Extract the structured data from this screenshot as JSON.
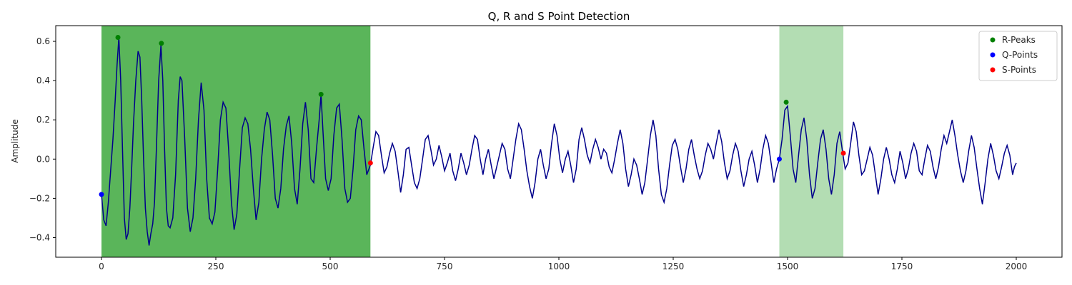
{
  "chart_data": {
    "type": "line",
    "title": "Q, R and S Point Detection",
    "xlabel": "",
    "ylabel": "Amplitude",
    "xlim": [
      -100,
      2100
    ],
    "ylim": [
      -0.5,
      0.68
    ],
    "xticks": [
      0,
      250,
      500,
      750,
      1000,
      1250,
      1500,
      1750,
      2000
    ],
    "yticks": [
      -0.4,
      -0.2,
      0.0,
      0.2,
      0.4,
      0.6
    ],
    "xtick_labels": [
      "0",
      "250",
      "500",
      "750",
      "1000",
      "1250",
      "1500",
      "1750",
      "2000"
    ],
    "ytick_labels": [
      "−0.4",
      "−0.2",
      "0.0",
      "0.2",
      "0.4",
      "0.6"
    ],
    "grid": false,
    "legend_position": "top-right",
    "signal": {
      "color": "#00008b",
      "points": [
        [
          0,
          -0.18
        ],
        [
          5,
          -0.31
        ],
        [
          10,
          -0.34
        ],
        [
          15,
          -0.22
        ],
        [
          20,
          -0.06
        ],
        [
          25,
          0.1
        ],
        [
          30,
          0.3
        ],
        [
          34,
          0.48
        ],
        [
          38,
          0.62
        ],
        [
          42,
          0.4
        ],
        [
          46,
          0.05
        ],
        [
          50,
          -0.3
        ],
        [
          54,
          -0.41
        ],
        [
          58,
          -0.38
        ],
        [
          62,
          -0.25
        ],
        [
          66,
          -0.05
        ],
        [
          70,
          0.18
        ],
        [
          75,
          0.4
        ],
        [
          80,
          0.55
        ],
        [
          84,
          0.52
        ],
        [
          88,
          0.3
        ],
        [
          92,
          0.0
        ],
        [
          96,
          -0.25
        ],
        [
          100,
          -0.37
        ],
        [
          104,
          -0.44
        ],
        [
          108,
          -0.38
        ],
        [
          112,
          -0.33
        ],
        [
          116,
          -0.22
        ],
        [
          120,
          0.05
        ],
        [
          125,
          0.4
        ],
        [
          130,
          0.58
        ],
        [
          134,
          0.4
        ],
        [
          138,
          0.05
        ],
        [
          142,
          -0.25
        ],
        [
          146,
          -0.34
        ],
        [
          150,
          -0.35
        ],
        [
          156,
          -0.3
        ],
        [
          162,
          -0.08
        ],
        [
          168,
          0.3
        ],
        [
          172,
          0.42
        ],
        [
          176,
          0.4
        ],
        [
          182,
          0.1
        ],
        [
          188,
          -0.25
        ],
        [
          194,
          -0.37
        ],
        [
          200,
          -0.3
        ],
        [
          206,
          -0.1
        ],
        [
          212,
          0.2
        ],
        [
          218,
          0.39
        ],
        [
          224,
          0.25
        ],
        [
          230,
          -0.1
        ],
        [
          236,
          -0.3
        ],
        [
          242,
          -0.33
        ],
        [
          248,
          -0.27
        ],
        [
          254,
          -0.05
        ],
        [
          260,
          0.2
        ],
        [
          266,
          0.29
        ],
        [
          272,
          0.26
        ],
        [
          278,
          0.05
        ],
        [
          284,
          -0.22
        ],
        [
          290,
          -0.36
        ],
        [
          296,
          -0.28
        ],
        [
          302,
          -0.05
        ],
        [
          308,
          0.16
        ],
        [
          314,
          0.21
        ],
        [
          320,
          0.18
        ],
        [
          326,
          0.05
        ],
        [
          332,
          -0.15
        ],
        [
          338,
          -0.31
        ],
        [
          344,
          -0.22
        ],
        [
          350,
          0.0
        ],
        [
          356,
          0.15
        ],
        [
          362,
          0.24
        ],
        [
          368,
          0.2
        ],
        [
          374,
          0.02
        ],
        [
          380,
          -0.2
        ],
        [
          386,
          -0.25
        ],
        [
          392,
          -0.15
        ],
        [
          398,
          0.05
        ],
        [
          404,
          0.17
        ],
        [
          410,
          0.22
        ],
        [
          416,
          0.08
        ],
        [
          422,
          -0.15
        ],
        [
          428,
          -0.23
        ],
        [
          434,
          -0.05
        ],
        [
          440,
          0.18
        ],
        [
          446,
          0.29
        ],
        [
          452,
          0.15
        ],
        [
          458,
          -0.1
        ],
        [
          464,
          -0.12
        ],
        [
          470,
          0.05
        ],
        [
          476,
          0.2
        ],
        [
          480,
          0.33
        ],
        [
          484,
          0.15
        ],
        [
          490,
          -0.1
        ],
        [
          496,
          -0.16
        ],
        [
          502,
          -0.1
        ],
        [
          508,
          0.12
        ],
        [
          514,
          0.26
        ],
        [
          520,
          0.28
        ],
        [
          526,
          0.1
        ],
        [
          532,
          -0.15
        ],
        [
          538,
          -0.22
        ],
        [
          544,
          -0.2
        ],
        [
          550,
          -0.05
        ],
        [
          556,
          0.15
        ],
        [
          562,
          0.22
        ],
        [
          568,
          0.2
        ],
        [
          574,
          0.05
        ],
        [
          580,
          -0.08
        ],
        [
          588,
          -0.03
        ],
        [
          594,
          0.06
        ],
        [
          600,
          0.14
        ],
        [
          606,
          0.12
        ],
        [
          612,
          0.02
        ],
        [
          618,
          -0.07
        ],
        [
          624,
          -0.04
        ],
        [
          630,
          0.03
        ],
        [
          636,
          0.08
        ],
        [
          642,
          0.04
        ],
        [
          648,
          -0.06
        ],
        [
          654,
          -0.17
        ],
        [
          660,
          -0.08
        ],
        [
          666,
          0.05
        ],
        [
          672,
          0.06
        ],
        [
          678,
          -0.03
        ],
        [
          684,
          -0.12
        ],
        [
          690,
          -0.15
        ],
        [
          696,
          -0.1
        ],
        [
          702,
          0.0
        ],
        [
          708,
          0.1
        ],
        [
          714,
          0.12
        ],
        [
          720,
          0.05
        ],
        [
          726,
          -0.03
        ],
        [
          732,
          0.0
        ],
        [
          738,
          0.07
        ],
        [
          744,
          0.01
        ],
        [
          750,
          -0.06
        ],
        [
          756,
          -0.02
        ],
        [
          762,
          0.03
        ],
        [
          768,
          -0.06
        ],
        [
          774,
          -0.11
        ],
        [
          780,
          -0.05
        ],
        [
          786,
          0.03
        ],
        [
          792,
          -0.02
        ],
        [
          798,
          -0.08
        ],
        [
          804,
          -0.03
        ],
        [
          810,
          0.05
        ],
        [
          816,
          0.12
        ],
        [
          822,
          0.1
        ],
        [
          828,
          0.0
        ],
        [
          834,
          -0.08
        ],
        [
          840,
          0.0
        ],
        [
          846,
          0.05
        ],
        [
          852,
          -0.03
        ],
        [
          858,
          -0.1
        ],
        [
          864,
          -0.04
        ],
        [
          870,
          0.02
        ],
        [
          876,
          0.08
        ],
        [
          882,
          0.05
        ],
        [
          888,
          -0.05
        ],
        [
          894,
          -0.1
        ],
        [
          900,
          0.0
        ],
        [
          906,
          0.1
        ],
        [
          912,
          0.18
        ],
        [
          918,
          0.15
        ],
        [
          924,
          0.05
        ],
        [
          930,
          -0.06
        ],
        [
          936,
          -0.14
        ],
        [
          942,
          -0.2
        ],
        [
          948,
          -0.12
        ],
        [
          954,
          0.0
        ],
        [
          960,
          0.05
        ],
        [
          966,
          -0.03
        ],
        [
          972,
          -0.1
        ],
        [
          978,
          -0.05
        ],
        [
          984,
          0.08
        ],
        [
          990,
          0.18
        ],
        [
          996,
          0.12
        ],
        [
          1002,
          0.0
        ],
        [
          1008,
          -0.07
        ],
        [
          1014,
          0.0
        ],
        [
          1020,
          0.04
        ],
        [
          1026,
          -0.03
        ],
        [
          1032,
          -0.12
        ],
        [
          1038,
          -0.05
        ],
        [
          1044,
          0.1
        ],
        [
          1050,
          0.16
        ],
        [
          1056,
          0.1
        ],
        [
          1062,
          0.02
        ],
        [
          1068,
          -0.02
        ],
        [
          1074,
          0.05
        ],
        [
          1080,
          0.1
        ],
        [
          1086,
          0.06
        ],
        [
          1092,
          0.0
        ],
        [
          1098,
          0.05
        ],
        [
          1104,
          0.03
        ],
        [
          1110,
          -0.04
        ],
        [
          1116,
          -0.07
        ],
        [
          1122,
          0.0
        ],
        [
          1128,
          0.08
        ],
        [
          1134,
          0.15
        ],
        [
          1140,
          0.08
        ],
        [
          1146,
          -0.05
        ],
        [
          1152,
          -0.14
        ],
        [
          1158,
          -0.08
        ],
        [
          1164,
          0.0
        ],
        [
          1170,
          -0.03
        ],
        [
          1176,
          -0.1
        ],
        [
          1182,
          -0.18
        ],
        [
          1188,
          -0.12
        ],
        [
          1194,
          0.0
        ],
        [
          1200,
          0.12
        ],
        [
          1206,
          0.2
        ],
        [
          1212,
          0.12
        ],
        [
          1218,
          -0.05
        ],
        [
          1224,
          -0.18
        ],
        [
          1230,
          -0.22
        ],
        [
          1236,
          -0.15
        ],
        [
          1242,
          -0.03
        ],
        [
          1248,
          0.07
        ],
        [
          1254,
          0.1
        ],
        [
          1260,
          0.05
        ],
        [
          1266,
          -0.04
        ],
        [
          1272,
          -0.12
        ],
        [
          1278,
          -0.05
        ],
        [
          1284,
          0.05
        ],
        [
          1290,
          0.1
        ],
        [
          1296,
          0.02
        ],
        [
          1302,
          -0.05
        ],
        [
          1308,
          -0.1
        ],
        [
          1314,
          -0.06
        ],
        [
          1320,
          0.02
        ],
        [
          1326,
          0.08
        ],
        [
          1332,
          0.05
        ],
        [
          1338,
          0.0
        ],
        [
          1344,
          0.08
        ],
        [
          1350,
          0.15
        ],
        [
          1356,
          0.09
        ],
        [
          1362,
          -0.02
        ],
        [
          1368,
          -0.1
        ],
        [
          1374,
          -0.06
        ],
        [
          1380,
          0.02
        ],
        [
          1386,
          0.08
        ],
        [
          1392,
          0.04
        ],
        [
          1398,
          -0.06
        ],
        [
          1404,
          -0.14
        ],
        [
          1410,
          -0.08
        ],
        [
          1416,
          0.0
        ],
        [
          1422,
          0.04
        ],
        [
          1428,
          -0.03
        ],
        [
          1434,
          -0.12
        ],
        [
          1440,
          -0.05
        ],
        [
          1446,
          0.05
        ],
        [
          1452,
          0.12
        ],
        [
          1458,
          0.08
        ],
        [
          1464,
          -0.02
        ],
        [
          1470,
          -0.12
        ],
        [
          1476,
          -0.05
        ],
        [
          1482,
          0.0
        ],
        [
          1488,
          0.1
        ],
        [
          1494,
          0.25
        ],
        [
          1500,
          0.27
        ],
        [
          1506,
          0.12
        ],
        [
          1512,
          -0.05
        ],
        [
          1518,
          -0.12
        ],
        [
          1524,
          0.02
        ],
        [
          1530,
          0.15
        ],
        [
          1536,
          0.21
        ],
        [
          1542,
          0.1
        ],
        [
          1548,
          -0.08
        ],
        [
          1554,
          -0.2
        ],
        [
          1560,
          -0.15
        ],
        [
          1566,
          -0.02
        ],
        [
          1572,
          0.1
        ],
        [
          1578,
          0.15
        ],
        [
          1584,
          0.05
        ],
        [
          1590,
          -0.1
        ],
        [
          1596,
          -0.18
        ],
        [
          1602,
          -0.08
        ],
        [
          1608,
          0.08
        ],
        [
          1614,
          0.14
        ],
        [
          1620,
          0.04
        ],
        [
          1626,
          -0.05
        ],
        [
          1632,
          -0.02
        ],
        [
          1638,
          0.08
        ],
        [
          1644,
          0.19
        ],
        [
          1650,
          0.14
        ],
        [
          1656,
          0.02
        ],
        [
          1662,
          -0.08
        ],
        [
          1668,
          -0.06
        ],
        [
          1674,
          0.0
        ],
        [
          1680,
          0.06
        ],
        [
          1686,
          0.02
        ],
        [
          1692,
          -0.08
        ],
        [
          1698,
          -0.18
        ],
        [
          1704,
          -0.1
        ],
        [
          1710,
          0.0
        ],
        [
          1716,
          0.06
        ],
        [
          1722,
          0.0
        ],
        [
          1728,
          -0.08
        ],
        [
          1734,
          -0.12
        ],
        [
          1740,
          -0.05
        ],
        [
          1746,
          0.04
        ],
        [
          1752,
          -0.02
        ],
        [
          1758,
          -0.1
        ],
        [
          1764,
          -0.05
        ],
        [
          1770,
          0.03
        ],
        [
          1776,
          0.08
        ],
        [
          1782,
          0.04
        ],
        [
          1788,
          -0.06
        ],
        [
          1794,
          -0.08
        ],
        [
          1800,
          0.0
        ],
        [
          1806,
          0.07
        ],
        [
          1812,
          0.04
        ],
        [
          1818,
          -0.04
        ],
        [
          1824,
          -0.1
        ],
        [
          1830,
          -0.04
        ],
        [
          1836,
          0.05
        ],
        [
          1842,
          0.12
        ],
        [
          1848,
          0.08
        ],
        [
          1854,
          0.14
        ],
        [
          1860,
          0.2
        ],
        [
          1866,
          0.12
        ],
        [
          1872,
          0.02
        ],
        [
          1878,
          -0.06
        ],
        [
          1884,
          -0.12
        ],
        [
          1890,
          -0.06
        ],
        [
          1896,
          0.04
        ],
        [
          1902,
          0.12
        ],
        [
          1908,
          0.06
        ],
        [
          1914,
          -0.05
        ],
        [
          1920,
          -0.15
        ],
        [
          1926,
          -0.23
        ],
        [
          1932,
          -0.12
        ],
        [
          1938,
          0.0
        ],
        [
          1944,
          0.08
        ],
        [
          1950,
          0.02
        ],
        [
          1956,
          -0.06
        ],
        [
          1962,
          -0.1
        ],
        [
          1968,
          -0.04
        ],
        [
          1974,
          0.03
        ],
        [
          1980,
          0.07
        ],
        [
          1986,
          0.02
        ],
        [
          1992,
          -0.08
        ],
        [
          1996,
          -0.04
        ],
        [
          2000,
          -0.02
        ]
      ]
    },
    "shaded_regions": [
      {
        "x_start": 0,
        "x_end": 588,
        "color": "#2ca02c",
        "opacity": 0.78
      },
      {
        "x_start": 1482,
        "x_end": 1622,
        "color": "#2ca02c",
        "opacity": 0.36
      }
    ],
    "series": [
      {
        "name": "R-Peaks",
        "color": "#008000",
        "points": [
          [
            36,
            0.62
          ],
          [
            131,
            0.59
          ],
          [
            480,
            0.33
          ],
          [
            1497,
            0.29
          ]
        ]
      },
      {
        "name": "Q-Points",
        "color": "#0000ff",
        "points": [
          [
            0,
            -0.18
          ],
          [
            1482,
            0.0
          ]
        ]
      },
      {
        "name": "S-Points",
        "color": "#ff0000",
        "points": [
          [
            588,
            -0.02
          ],
          [
            1622,
            0.03
          ]
        ]
      }
    ]
  }
}
